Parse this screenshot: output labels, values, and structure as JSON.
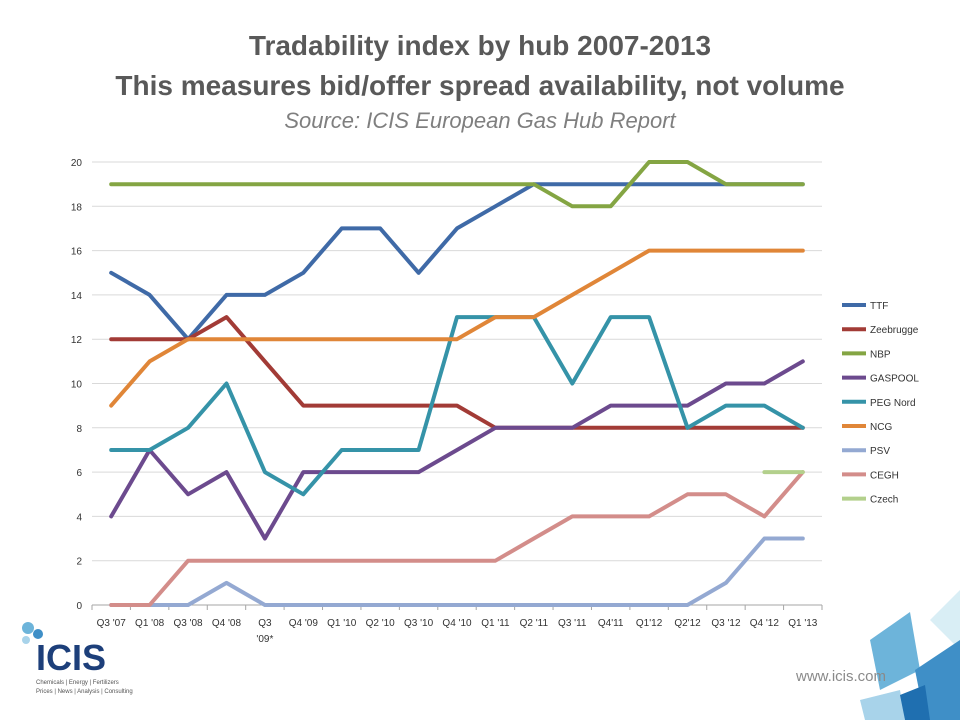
{
  "header": {
    "title": "Tradability index by hub 2007-2013",
    "subtitle": "This measures bid/offer spread availability, not volume",
    "source": "Source: ICIS European Gas Hub Report"
  },
  "footer": {
    "website": "www.icis.com",
    "logo_text": "ICIS",
    "logo_tagline_1": "Chemicals | Energy | Fertilizers",
    "logo_tagline_2": "Prices | News | Analysis | Consulting"
  },
  "chart_data": {
    "type": "line",
    "title": "Tradability index by hub 2007-2013",
    "ylim": [
      0,
      20
    ],
    "yticks": [
      0,
      2,
      4,
      6,
      8,
      10,
      12,
      14,
      16,
      18,
      20
    ],
    "grid": true,
    "legend_position": "right",
    "categories": [
      "Q3 '07",
      "Q1 '08",
      "Q3 '08",
      "Q4 '08",
      "Q3 '09*",
      "Q4 '09",
      "Q1 '10",
      "Q2 '10",
      "Q3 '10",
      "Q4 '10",
      "Q1 '11",
      "Q2 '11",
      "Q3 '11",
      "Q4'11",
      "Q1'12",
      "Q2'12",
      "Q3 '12",
      "Q4 '12",
      "Q1 '13"
    ],
    "series": [
      {
        "name": "TTF",
        "color": "#3f6aa7",
        "values": [
          15,
          14,
          12,
          14,
          14,
          15,
          17,
          17,
          15,
          17,
          18,
          19,
          19,
          19,
          19,
          19,
          19,
          19,
          19
        ]
      },
      {
        "name": "Zeebrugge",
        "color": "#a23b36",
        "values": [
          12,
          12,
          12,
          13,
          11,
          9,
          9,
          9,
          9,
          9,
          8,
          8,
          8,
          8,
          8,
          8,
          8,
          8,
          8
        ]
      },
      {
        "name": "NBP",
        "color": "#84a543",
        "values": [
          19,
          19,
          19,
          19,
          19,
          19,
          19,
          19,
          19,
          19,
          19,
          19,
          18,
          18,
          20,
          20,
          19,
          19,
          19
        ]
      },
      {
        "name": "GASPOOL",
        "color": "#6c4a8e",
        "values": [
          4,
          7,
          5,
          6,
          3,
          6,
          6,
          6,
          6,
          7,
          8,
          8,
          8,
          9,
          9,
          9,
          10,
          10,
          11
        ]
      },
      {
        "name": "PEG Nord",
        "color": "#3593a8",
        "values": [
          7,
          7,
          8,
          10,
          6,
          5,
          7,
          7,
          7,
          13,
          13,
          13,
          10,
          13,
          13,
          8,
          9,
          9,
          8
        ]
      },
      {
        "name": "NCG",
        "color": "#e08638",
        "values": [
          9,
          11,
          12,
          12,
          12,
          12,
          12,
          12,
          12,
          12,
          13,
          13,
          14,
          15,
          16,
          16,
          16,
          16,
          16
        ]
      },
      {
        "name": "PSV",
        "color": "#94a9d2",
        "values": [
          0,
          0,
          0,
          1,
          0,
          0,
          0,
          0,
          0,
          0,
          0,
          0,
          0,
          0,
          0,
          0,
          1,
          3,
          3
        ]
      },
      {
        "name": "CEGH",
        "color": "#d38d8a",
        "values": [
          0,
          0,
          2,
          2,
          2,
          2,
          2,
          2,
          2,
          2,
          2,
          3,
          4,
          4,
          4,
          5,
          5,
          4,
          6
        ]
      },
      {
        "name": "Czech",
        "color": "#b3d08c",
        "values": [
          null,
          null,
          null,
          null,
          null,
          null,
          null,
          null,
          null,
          null,
          null,
          null,
          null,
          null,
          null,
          null,
          null,
          6,
          6
        ]
      }
    ]
  }
}
